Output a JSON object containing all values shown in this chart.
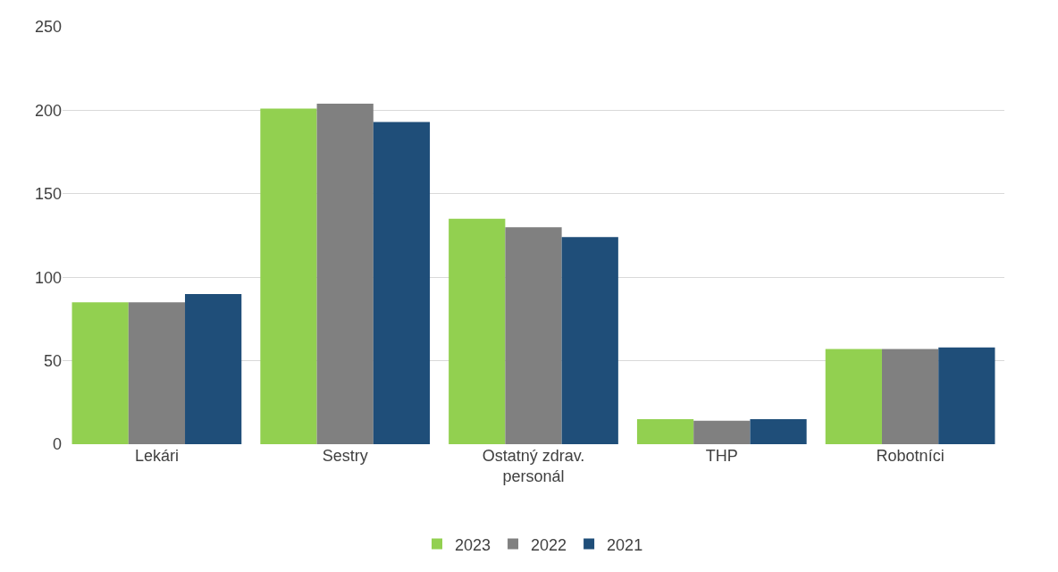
{
  "chart_data": {
    "type": "bar",
    "categories": [
      "Lekári",
      "Sestry",
      "Ostatný zdrav. personál",
      "THP",
      "Robotníci"
    ],
    "series": [
      {
        "name": "2023",
        "color": "#92d050",
        "values": [
          85,
          201,
          135,
          15,
          57
        ]
      },
      {
        "name": "2022",
        "color": "#808080",
        "values": [
          85,
          204,
          130,
          14,
          57
        ]
      },
      {
        "name": "2021",
        "color": "#1f4e79",
        "values": [
          90,
          193,
          124,
          15,
          58
        ]
      }
    ],
    "ylim": [
      0,
      250
    ],
    "yticks": [
      0,
      50,
      100,
      150,
      200,
      250
    ],
    "grid": "y",
    "legend": "bottom"
  }
}
